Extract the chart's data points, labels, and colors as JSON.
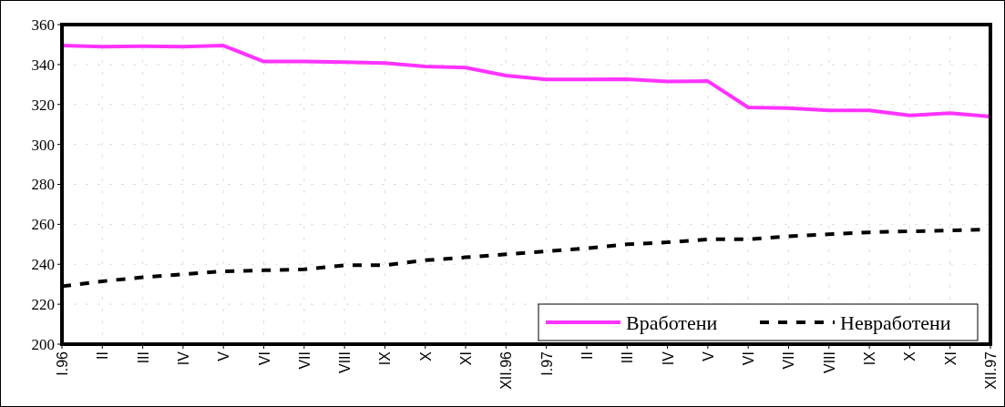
{
  "chart_data": {
    "type": "line",
    "categories": [
      "I.96",
      "II",
      "III",
      "IV",
      "V",
      "VI",
      "VII",
      "VIII",
      "IX",
      "X",
      "XI",
      "XII.96",
      "I.97",
      "II",
      "III",
      "IV",
      "V",
      "VI",
      "VII",
      "VIII",
      "IX",
      "X",
      "XI",
      "XII.97"
    ],
    "series": [
      {
        "name": "Вработени",
        "color": "#ff33ff",
        "line_style": "solid",
        "values": [
          349.5,
          349,
          349.2,
          349,
          349.5,
          341.5,
          341.5,
          341.2,
          340.7,
          339,
          338.5,
          334.5,
          332.5,
          332.5,
          332.7,
          331.5,
          331.7,
          318.5,
          318.2,
          317,
          317,
          314.5,
          315.7,
          314
        ]
      },
      {
        "name": "Невработени",
        "color": "#000000",
        "line_style": "dashed",
        "values": [
          229,
          231.5,
          233.5,
          235,
          236.5,
          237,
          237.5,
          239.5,
          239.5,
          242,
          243.5,
          245,
          246.5,
          248,
          250,
          251,
          252.5,
          252.5,
          254,
          255,
          256,
          256.5,
          257,
          257.5
        ]
      }
    ],
    "ylim": [
      200,
      360
    ],
    "yticks": [
      200,
      220,
      240,
      260,
      280,
      300,
      320,
      340,
      360
    ],
    "grid": true,
    "legend": "bottom right",
    "marker": "none"
  }
}
